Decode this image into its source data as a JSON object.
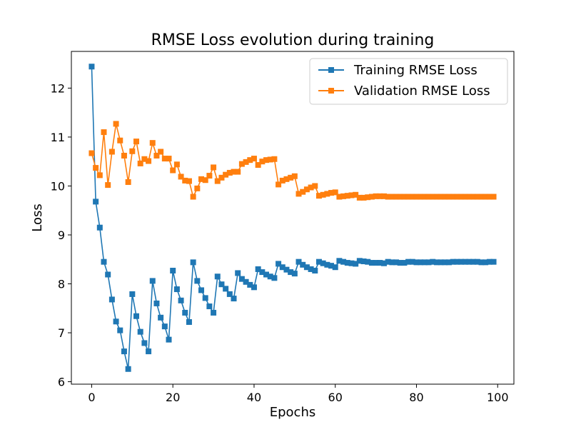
{
  "chart_data": {
    "type": "line",
    "title": "RMSE Loss evolution during training",
    "xlabel": "Epochs",
    "ylabel": "Loss",
    "xlim": [
      -5,
      104
    ],
    "ylim": [
      5.95,
      12.75
    ],
    "xticks": [
      0,
      20,
      40,
      60,
      80,
      100
    ],
    "yticks": [
      6,
      7,
      8,
      9,
      10,
      11,
      12
    ],
    "legend_position": "top-right",
    "colors": {
      "Training RMSE Loss": "#1f77b4",
      "Validation RMSE Loss": "#ff7f0e"
    },
    "series": [
      {
        "name": "Training RMSE Loss",
        "values": [
          12.44,
          9.68,
          9.15,
          8.45,
          8.19,
          7.68,
          7.23,
          7.05,
          6.62,
          6.26,
          7.79,
          7.34,
          7.02,
          6.79,
          6.62,
          8.06,
          7.6,
          7.31,
          7.13,
          6.86,
          8.27,
          7.89,
          7.66,
          7.41,
          7.22,
          8.44,
          8.06,
          7.87,
          7.71,
          7.54,
          7.41,
          8.15,
          7.99,
          7.9,
          7.79,
          7.7,
          8.22,
          8.1,
          8.04,
          7.98,
          7.93,
          8.3,
          8.24,
          8.19,
          8.15,
          8.12,
          8.41,
          8.34,
          8.29,
          8.24,
          8.21,
          8.45,
          8.39,
          8.34,
          8.3,
          8.27,
          8.45,
          8.42,
          8.39,
          8.37,
          8.34,
          8.47,
          8.45,
          8.43,
          8.42,
          8.41,
          8.47,
          8.46,
          8.45,
          8.43,
          8.43,
          8.43,
          8.42,
          8.45,
          8.44,
          8.44,
          8.43,
          8.43,
          8.45,
          8.45,
          8.44,
          8.44,
          8.44,
          8.44,
          8.45,
          8.44,
          8.44,
          8.44,
          8.44,
          8.45,
          8.45,
          8.45,
          8.45,
          8.45,
          8.45,
          8.45,
          8.44,
          8.44,
          8.45,
          8.45
        ]
      },
      {
        "name": "Validation RMSE Loss",
        "values": [
          10.67,
          10.37,
          10.22,
          11.1,
          10.02,
          10.7,
          11.27,
          10.93,
          10.62,
          10.08,
          10.71,
          10.91,
          10.46,
          10.55,
          10.51,
          10.88,
          10.62,
          10.7,
          10.56,
          10.56,
          10.32,
          10.44,
          10.19,
          10.11,
          10.1,
          9.78,
          9.95,
          10.14,
          10.12,
          10.21,
          10.38,
          10.1,
          10.17,
          10.23,
          10.27,
          10.29,
          10.29,
          10.45,
          10.49,
          10.53,
          10.56,
          10.43,
          10.5,
          10.53,
          10.54,
          10.55,
          10.03,
          10.11,
          10.14,
          10.17,
          10.2,
          9.84,
          9.88,
          9.93,
          9.97,
          10.0,
          9.8,
          9.82,
          9.84,
          9.86,
          9.87,
          9.78,
          9.79,
          9.8,
          9.81,
          9.82,
          9.76,
          9.76,
          9.77,
          9.78,
          9.79,
          9.79,
          9.79,
          9.78,
          9.78,
          9.78,
          9.78,
          9.78,
          9.78,
          9.78,
          9.78,
          9.78,
          9.78,
          9.78,
          9.78,
          9.78,
          9.78,
          9.78,
          9.78,
          9.78,
          9.78,
          9.78,
          9.78,
          9.78,
          9.78,
          9.78,
          9.78,
          9.78,
          9.78,
          9.78
        ]
      }
    ]
  }
}
